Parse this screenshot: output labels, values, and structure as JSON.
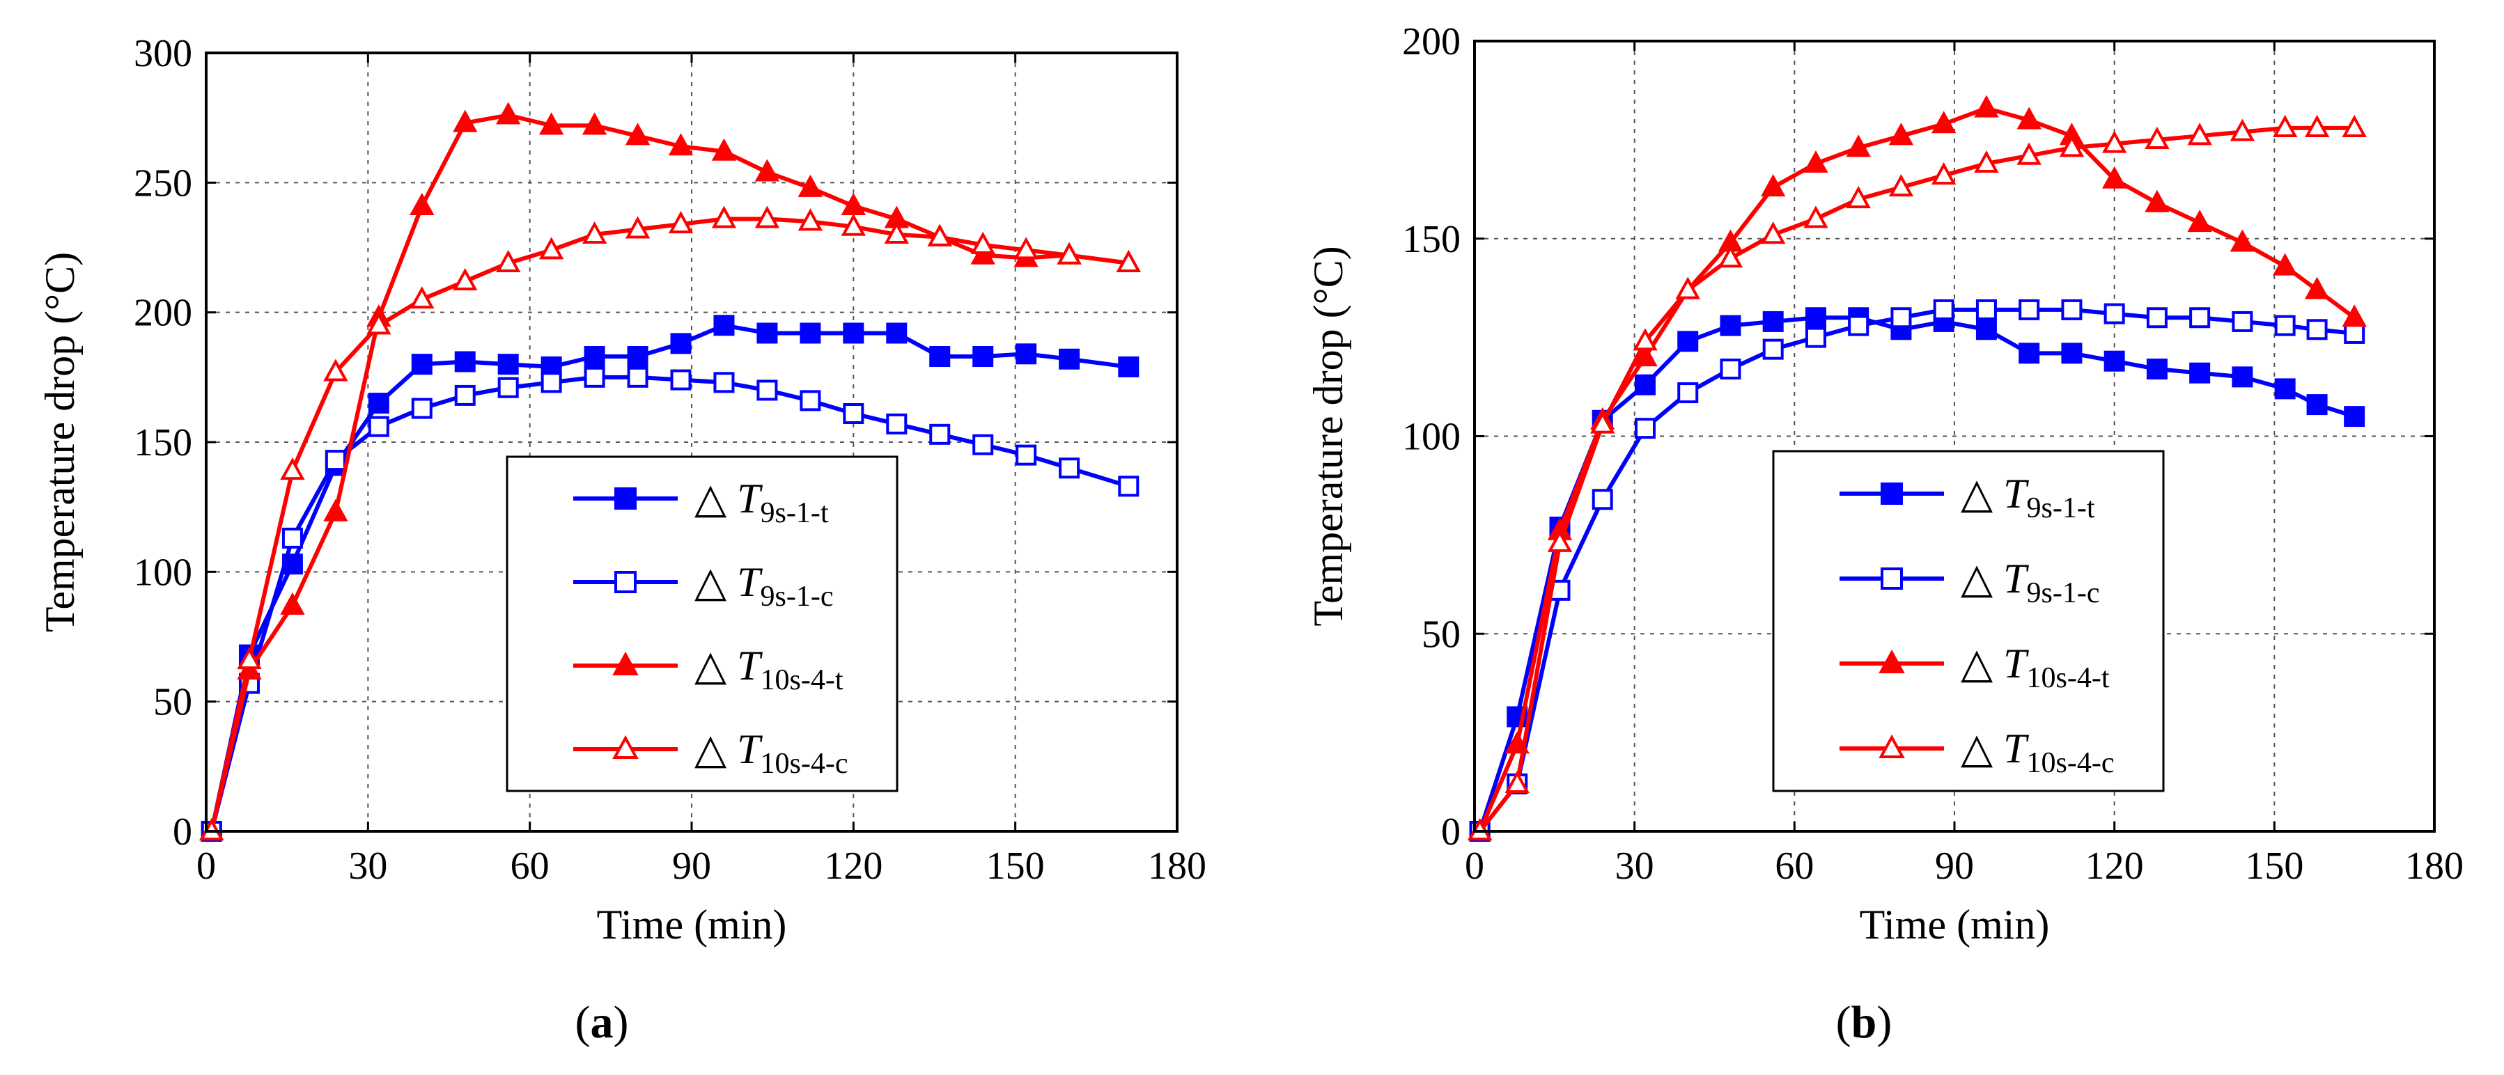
{
  "chart_data": [
    {
      "id": "a",
      "type": "line",
      "panel_label": "a",
      "xlabel": "Time (min)",
      "ylabel": "Temperature drop (°C)",
      "xlim": [
        0,
        180
      ],
      "ylim": [
        0,
        300
      ],
      "xticks": [
        0,
        30,
        60,
        90,
        120,
        150,
        180
      ],
      "yticks": [
        0,
        50,
        100,
        150,
        200,
        250,
        300
      ],
      "grid": true,
      "legend_position": "lower-right",
      "series": [
        {
          "name": "△ T9s-1-t",
          "legend_prefix": "△ T",
          "legend_sub": "9s-1-t",
          "color": "#0000ff",
          "marker": "square",
          "filled": true,
          "x": [
            1,
            8,
            16,
            24,
            32,
            40,
            48,
            56,
            64,
            72,
            80,
            88,
            96,
            104,
            112,
            120,
            128,
            136,
            144,
            152,
            160,
            171
          ],
          "y": [
            0,
            68,
            103,
            141,
            165,
            180,
            181,
            180,
            179,
            183,
            183,
            188,
            195,
            192,
            192,
            192,
            192,
            183,
            183,
            184,
            182,
            179
          ]
        },
        {
          "name": "△ T9s-1-c",
          "legend_prefix": "△ T",
          "legend_sub": "9s-1-c",
          "color": "#0000ff",
          "marker": "square",
          "filled": false,
          "x": [
            1,
            8,
            16,
            24,
            32,
            40,
            48,
            56,
            64,
            72,
            80,
            88,
            96,
            104,
            112,
            120,
            128,
            136,
            144,
            152,
            160,
            171
          ],
          "y": [
            0,
            57,
            113,
            143,
            156,
            163,
            168,
            171,
            173,
            175,
            175,
            174,
            173,
            170,
            166,
            161,
            157,
            153,
            149,
            145,
            140,
            133
          ]
        },
        {
          "name": "△ T10s-4-t",
          "legend_prefix": "△ T",
          "legend_sub": "10s-4-t",
          "color": "#ff0000",
          "marker": "triangle",
          "filled": true,
          "x": [
            1,
            8,
            16,
            24,
            32,
            40,
            48,
            56,
            64,
            72,
            80,
            88,
            96,
            104,
            112,
            120,
            128,
            136,
            144,
            152,
            160,
            171
          ],
          "y": [
            0,
            62,
            87,
            123,
            198,
            241,
            273,
            276,
            272,
            272,
            268,
            264,
            262,
            254,
            248,
            241,
            236,
            229,
            222,
            221,
            222,
            219
          ]
        },
        {
          "name": "△ T10s-4-c",
          "legend_prefix": "△ T",
          "legend_sub": "10s-4-c",
          "color": "#ff0000",
          "marker": "triangle",
          "filled": false,
          "x": [
            1,
            8,
            16,
            24,
            32,
            40,
            48,
            56,
            64,
            72,
            80,
            88,
            96,
            104,
            112,
            120,
            128,
            136,
            144,
            152,
            160,
            171
          ],
          "y": [
            0,
            66,
            139,
            177,
            195,
            205,
            212,
            219,
            224,
            230,
            232,
            234,
            236,
            236,
            235,
            233,
            230,
            229,
            226,
            224,
            222,
            219
          ]
        }
      ]
    },
    {
      "id": "b",
      "type": "line",
      "panel_label": "b",
      "xlabel": "Time (min)",
      "ylabel": "Temperature drop (°C)",
      "xlim": [
        0,
        180
      ],
      "ylim": [
        0,
        200
      ],
      "xticks": [
        0,
        30,
        60,
        90,
        120,
        150,
        180
      ],
      "yticks": [
        0,
        50,
        100,
        150,
        200
      ],
      "grid": true,
      "legend_position": "lower-right",
      "series": [
        {
          "name": "△ T9s-1-t",
          "legend_prefix": "△ T",
          "legend_sub": "9s-1-t",
          "color": "#0000ff",
          "marker": "square",
          "filled": true,
          "x": [
            1,
            8,
            16,
            24,
            32,
            40,
            48,
            56,
            64,
            72,
            80,
            88,
            96,
            104,
            112,
            120,
            128,
            136,
            144,
            152,
            158,
            165
          ],
          "y": [
            0,
            29,
            77,
            104,
            113,
            124,
            128,
            129,
            130,
            130,
            127,
            129,
            127,
            121,
            121,
            119,
            117,
            116,
            115,
            112,
            108,
            105
          ]
        },
        {
          "name": "△ T9s-1-c",
          "legend_prefix": "△ T",
          "legend_sub": "9s-1-c",
          "color": "#0000ff",
          "marker": "square",
          "filled": false,
          "x": [
            1,
            8,
            16,
            24,
            32,
            40,
            48,
            56,
            64,
            72,
            80,
            88,
            96,
            104,
            112,
            120,
            128,
            136,
            144,
            152,
            158,
            165
          ],
          "y": [
            0,
            12,
            61,
            84,
            102,
            111,
            117,
            122,
            125,
            128,
            130,
            132,
            132,
            132,
            132,
            131,
            130,
            130,
            129,
            128,
            127,
            126
          ]
        },
        {
          "name": "△ T10s-4-t",
          "legend_prefix": "△ T",
          "legend_sub": "10s-4-t",
          "color": "#ff0000",
          "marker": "triangle",
          "filled": true,
          "x": [
            1,
            8,
            16,
            24,
            32,
            40,
            48,
            56,
            64,
            72,
            80,
            88,
            96,
            104,
            112,
            120,
            128,
            136,
            144,
            152,
            158,
            165
          ],
          "y": [
            0,
            22,
            76,
            104,
            120,
            137,
            149,
            163,
            169,
            173,
            176,
            179,
            183,
            180,
            176,
            165,
            159,
            154,
            149,
            143,
            137,
            130
          ]
        },
        {
          "name": "△ T10s-4-c",
          "legend_prefix": "△ T",
          "legend_sub": "10s-4-c",
          "color": "#ff0000",
          "marker": "triangle",
          "filled": false,
          "x": [
            1,
            8,
            16,
            24,
            32,
            40,
            48,
            56,
            64,
            72,
            80,
            88,
            96,
            104,
            112,
            120,
            128,
            136,
            144,
            152,
            158,
            165
          ],
          "y": [
            0,
            12,
            73,
            103,
            124,
            137,
            145,
            151,
            155,
            160,
            163,
            166,
            169,
            171,
            173,
            174,
            175,
            176,
            177,
            178,
            178,
            178
          ]
        }
      ]
    }
  ]
}
